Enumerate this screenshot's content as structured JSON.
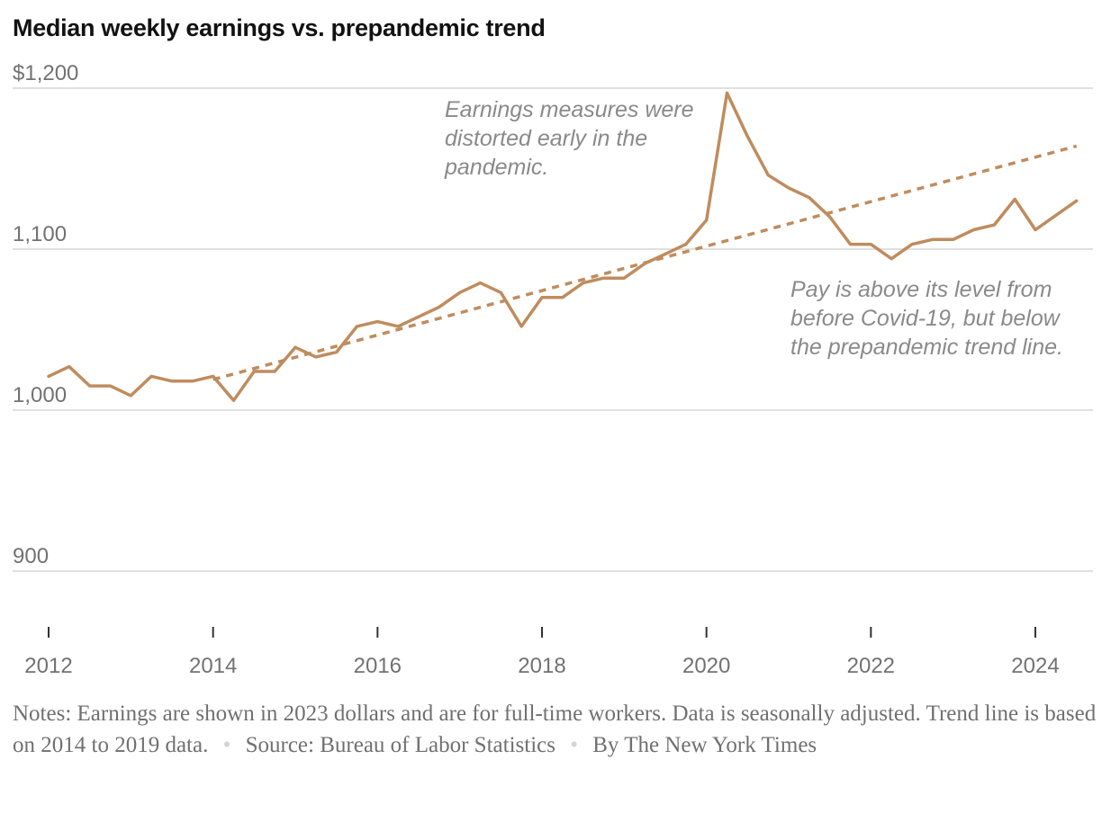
{
  "chart_data": {
    "type": "line",
    "title": "Median weekly earnings vs. prepandemic trend",
    "xlabel": "",
    "ylabel": "",
    "ylim": [
      870,
      1210
    ],
    "xlim": [
      2012,
      2024.75
    ],
    "y_ticks": [
      900,
      1000,
      1100,
      1200
    ],
    "y_tick_labels": [
      "900",
      "1,000",
      "1,100",
      "$1,200"
    ],
    "x_ticks": [
      2012,
      2014,
      2016,
      2018,
      2020,
      2022,
      2024
    ],
    "x_tick_labels": [
      "2012",
      "2014",
      "2016",
      "2018",
      "2020",
      "2022",
      "2024"
    ],
    "grid": true,
    "legend": "none",
    "series": [
      {
        "style": "solid",
        "color": "#bf8c5e",
        "x": [
          2012.0,
          2012.25,
          2012.5,
          2012.75,
          2013.0,
          2013.25,
          2013.5,
          2013.75,
          2014.0,
          2014.25,
          2014.5,
          2014.75,
          2015.0,
          2015.25,
          2015.5,
          2015.75,
          2016.0,
          2016.25,
          2016.5,
          2016.75,
          2017.0,
          2017.25,
          2017.5,
          2017.75,
          2018.0,
          2018.25,
          2018.5,
          2018.75,
          2019.0,
          2019.25,
          2019.5,
          2019.75,
          2020.0,
          2020.25,
          2020.5,
          2020.75,
          2021.0,
          2021.25,
          2021.5,
          2021.75,
          2022.0,
          2022.25,
          2022.5,
          2022.75,
          2023.0,
          2023.25,
          2023.5,
          2023.75,
          2024.0,
          2024.25,
          2024.5
        ],
        "values": [
          1021,
          1027,
          1015,
          1015,
          1009,
          1021,
          1018,
          1018,
          1021,
          1006,
          1024,
          1024,
          1039,
          1033,
          1036,
          1052,
          1055,
          1052,
          1058,
          1064,
          1073,
          1079,
          1073,
          1052,
          1070,
          1070,
          1079,
          1082,
          1082,
          1091,
          1097,
          1103,
          1118,
          1197,
          1170,
          1146,
          1138,
          1132,
          1120,
          1103,
          1103,
          1094,
          1103,
          1106,
          1106,
          1112,
          1115,
          1131,
          1112,
          1121,
          1130
        ]
      },
      {
        "style": "dashed",
        "color": "#bf8c5e",
        "x": [
          2014.0,
          2024.5
        ],
        "values": [
          1019,
          1164
        ]
      }
    ],
    "annotations": [
      {
        "lines": [
          "Earnings measures were",
          "distorted early in the",
          "pandemic."
        ]
      },
      {
        "lines": [
          "Pay is above its level from",
          "before Covid-19, but below",
          "the prepandemic trend line."
        ]
      }
    ]
  },
  "notes": {
    "text": "Notes: Earnings are shown in 2023 dollars and are for full-time workers. Data is seasonally adjusted. Trend line is based on 2014 to 2019 data.",
    "source": "Source: Bureau of Labor Statistics",
    "credit": "By The New York Times"
  }
}
